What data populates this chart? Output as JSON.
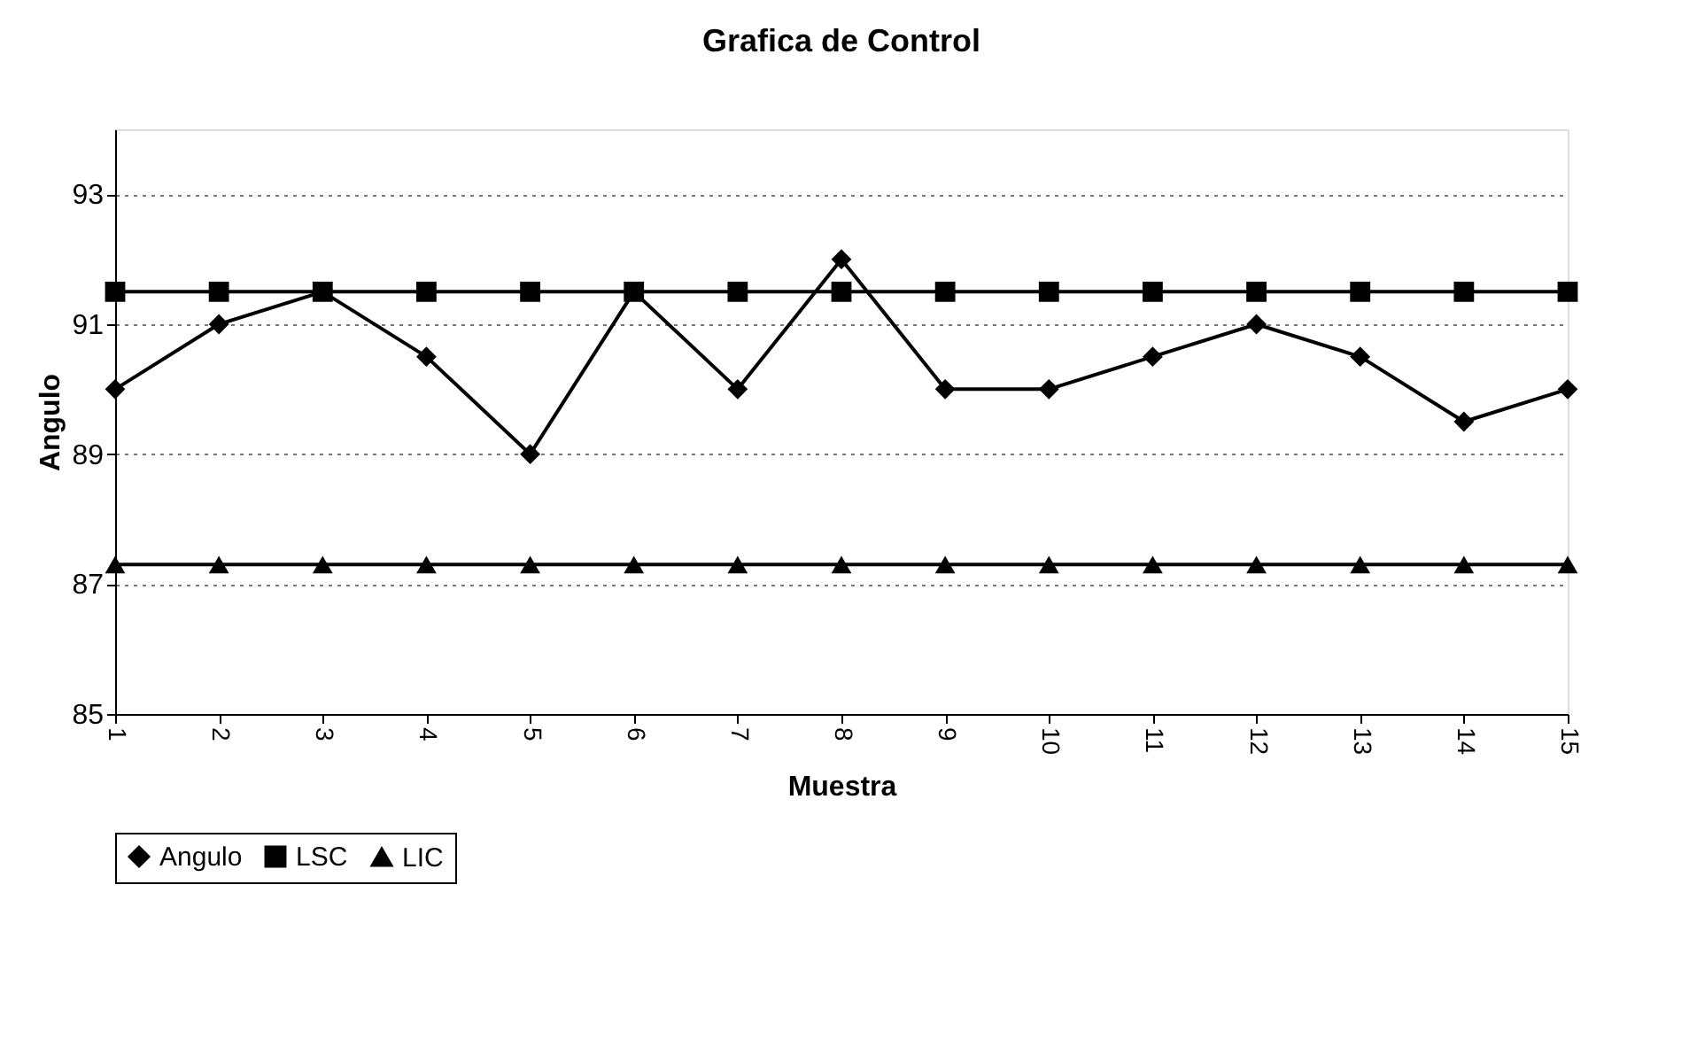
{
  "chart_data": {
    "type": "line",
    "title": "Grafica de Control",
    "xlabel": "Muestra",
    "ylabel": "Angulo",
    "categories": [
      "1",
      "2",
      "3",
      "4",
      "5",
      "6",
      "7",
      "8",
      "9",
      "10",
      "11",
      "12",
      "13",
      "14",
      "15"
    ],
    "series": [
      {
        "name": "Angulo",
        "color": "#000000",
        "marker": "diamond",
        "values": [
          90,
          91,
          91.5,
          90.5,
          89,
          91.5,
          90,
          92,
          90,
          90,
          90.5,
          91,
          90.5,
          89.5,
          90
        ]
      },
      {
        "name": "LSC",
        "color": "#000000",
        "marker": "square",
        "values": [
          91.5,
          91.5,
          91.5,
          91.5,
          91.5,
          91.5,
          91.5,
          91.5,
          91.5,
          91.5,
          91.5,
          91.5,
          91.5,
          91.5,
          91.5
        ]
      },
      {
        "name": "LIC",
        "color": "#000000",
        "marker": "triangle",
        "values": [
          87.3,
          87.3,
          87.3,
          87.3,
          87.3,
          87.3,
          87.3,
          87.3,
          87.3,
          87.3,
          87.3,
          87.3,
          87.3,
          87.3,
          87.3
        ]
      }
    ],
    "ylim": [
      85,
      94
    ],
    "yticks": [
      85,
      87,
      89,
      91,
      93
    ],
    "grid": "y",
    "legend": "bottom",
    "line_style": "solid"
  }
}
